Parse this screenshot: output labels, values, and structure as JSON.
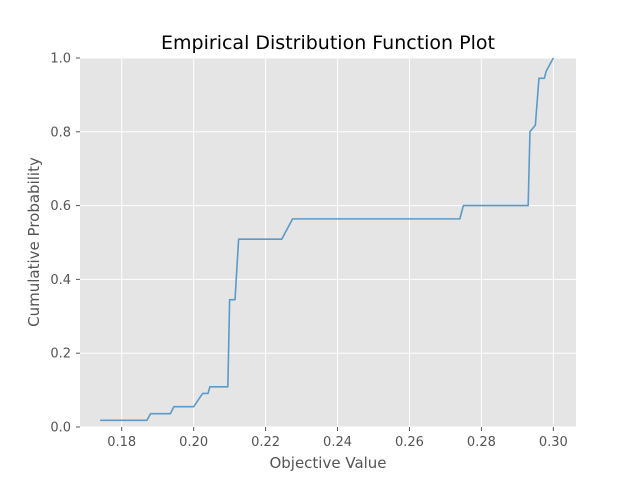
{
  "chart_data": {
    "type": "line",
    "title": "Empirical Distribution Function Plot",
    "xlabel": "Objective Value",
    "ylabel": "Cumulative Probability",
    "xlim": [
      0.1684,
      0.3063
    ],
    "ylim": [
      0.0,
      1.0
    ],
    "x_ticks": [
      0.18,
      0.2,
      0.22,
      0.24,
      0.26,
      0.28,
      0.3
    ],
    "x_tick_labels": [
      "0.18",
      "0.20",
      "0.22",
      "0.24",
      "0.26",
      "0.28",
      "0.30"
    ],
    "y_ticks": [
      0.0,
      0.2,
      0.4,
      0.6,
      0.8,
      1.0
    ],
    "y_tick_labels": [
      "0.0",
      "0.2",
      "0.4",
      "0.6",
      "0.8",
      "1.0"
    ],
    "grid": true,
    "style": "ggplot",
    "colors": {
      "background": "#e5e5e5",
      "grid": "#ffffff",
      "line": "#5b9bc7",
      "tick_text": "#555555"
    },
    "series": [
      {
        "x": [
          0.174,
          0.187,
          0.188,
          0.1935,
          0.1945,
          0.2,
          0.2025,
          0.204,
          0.2045,
          0.208,
          0.2085,
          0.2095,
          0.21,
          0.211,
          0.2115,
          0.2125,
          0.2135,
          0.224,
          0.2245,
          0.2275,
          0.228,
          0.274,
          0.275,
          0.293,
          0.2935,
          0.295,
          0.296,
          0.2975,
          0.298,
          0.299,
          0.3
        ],
        "y": [
          0.018,
          0.018,
          0.036,
          0.036,
          0.055,
          0.055,
          0.091,
          0.091,
          0.109,
          0.109,
          0.109,
          0.109,
          0.345,
          0.345,
          0.345,
          0.509,
          0.509,
          0.509,
          0.509,
          0.564,
          0.564,
          0.564,
          0.6,
          0.6,
          0.8,
          0.818,
          0.945,
          0.945,
          0.964,
          0.982,
          1.0
        ]
      }
    ]
  }
}
